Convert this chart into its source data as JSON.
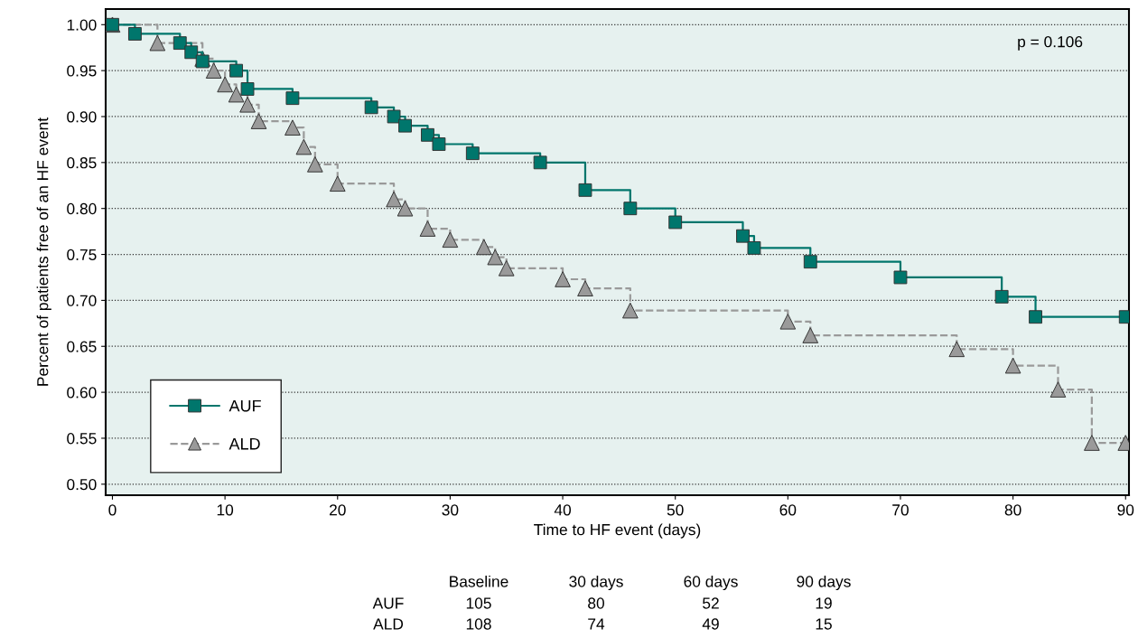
{
  "chart_data": {
    "type": "step",
    "xlabel": "Time to HF event (days)",
    "ylabel": "Percent of patients free of an HF event",
    "series": [
      {
        "name": "AUF",
        "color": "#00766c",
        "line_style": "solid",
        "marker": "square",
        "x": [
          0,
          2,
          6,
          7,
          8,
          11,
          12,
          16,
          23,
          25,
          26,
          28,
          29,
          32,
          38,
          42,
          46,
          50,
          56,
          57,
          62,
          70,
          79,
          82,
          90
        ],
        "values": [
          1.0,
          0.99,
          0.98,
          0.97,
          0.96,
          0.95,
          0.93,
          0.92,
          0.91,
          0.9,
          0.89,
          0.88,
          0.87,
          0.86,
          0.85,
          0.82,
          0.8,
          0.785,
          0.77,
          0.757,
          0.742,
          0.725,
          0.704,
          0.682,
          0.682
        ]
      },
      {
        "name": "ALD",
        "color": "#9a9a9a",
        "line_style": "dashed",
        "marker": "triangle",
        "x": [
          0,
          4,
          8,
          9,
          10,
          11,
          12,
          13,
          16,
          17,
          18,
          20,
          25,
          26,
          28,
          30,
          33,
          34,
          35,
          40,
          42,
          46,
          60,
          62,
          75,
          80,
          84,
          87,
          90
        ],
        "values": [
          1.0,
          0.98,
          0.963,
          0.95,
          0.935,
          0.924,
          0.913,
          0.895,
          0.888,
          0.867,
          0.848,
          0.827,
          0.81,
          0.8,
          0.778,
          0.766,
          0.758,
          0.747,
          0.735,
          0.723,
          0.713,
          0.689,
          0.677,
          0.662,
          0.647,
          0.629,
          0.603,
          0.545,
          0.545
        ]
      }
    ],
    "xlim": [
      -0.6,
      90.3
    ],
    "ylim": [
      0.488,
      1.017
    ],
    "xticks": [
      0,
      10,
      20,
      30,
      40,
      50,
      60,
      70,
      80,
      90
    ],
    "yticks": [
      {
        "value": 0.5,
        "label": "0.50"
      },
      {
        "value": 0.55,
        "label": "0.55"
      },
      {
        "value": 0.6,
        "label": "0.60"
      },
      {
        "value": 0.65,
        "label": "0.65"
      },
      {
        "value": 0.7,
        "label": "0.70"
      },
      {
        "value": 0.75,
        "label": "0.75"
      },
      {
        "value": 0.8,
        "label": "0.80"
      },
      {
        "value": 0.85,
        "label": "0.85"
      },
      {
        "value": 0.9,
        "label": "0.90"
      },
      {
        "value": 0.95,
        "label": "0.95"
      },
      {
        "value": 1.0,
        "label": "1.00"
      }
    ],
    "grid": "y",
    "legend": "bottom left",
    "annotations": [
      "p = 0.106",
      "Baseline",
      "30 days",
      "60 days",
      "90 days",
      "AUF",
      "105",
      "80",
      "52",
      "19",
      "ALD",
      "108",
      "74",
      "49",
      "15"
    ]
  }
}
